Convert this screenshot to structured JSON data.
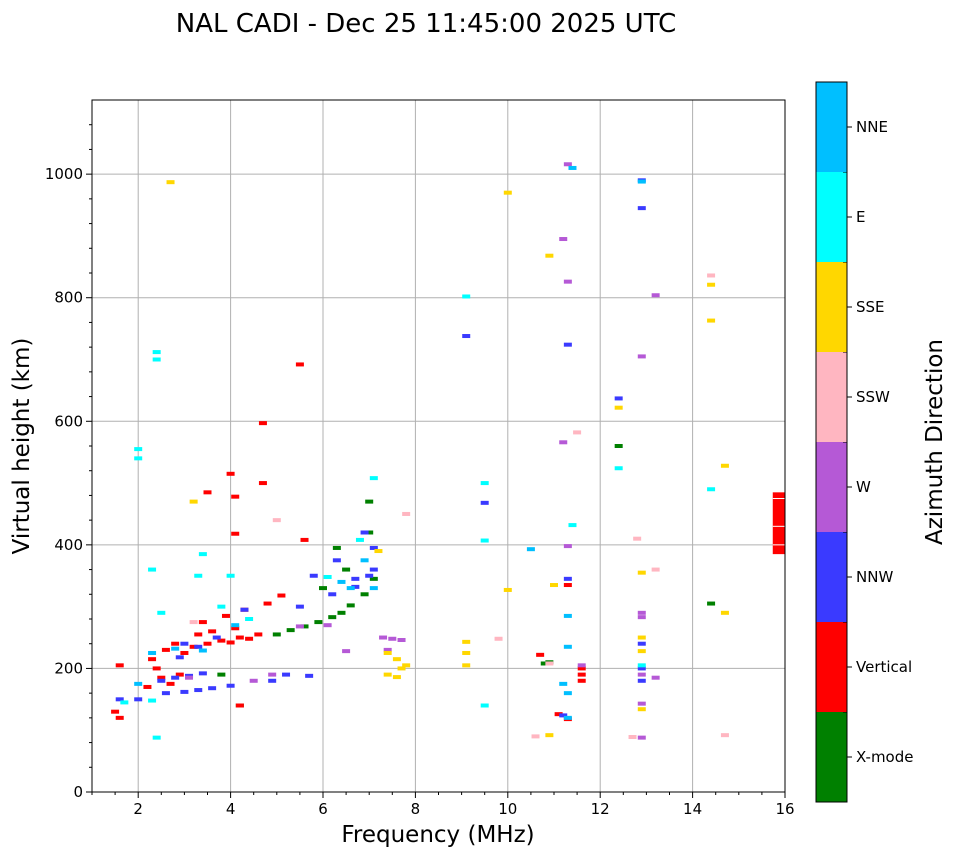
{
  "chart_data": {
    "type": "scatter",
    "title": "NAL CADI - Dec 25 11:45:00 2025 UTC",
    "xlabel": "Frequency (MHz)",
    "ylabel": "Virtual height (km)",
    "xlim": [
      1,
      16
    ],
    "ylim": [
      0,
      1120
    ],
    "xticks": [
      2,
      4,
      6,
      8,
      10,
      12,
      14,
      16
    ],
    "yticks": [
      0,
      200,
      400,
      600,
      800,
      1000
    ],
    "grid": true,
    "colorbar": {
      "label": "Azimuth Direction",
      "categories": [
        "X-mode",
        "Vertical",
        "NNW",
        "W",
        "SSW",
        "SSE",
        "E",
        "NNE"
      ],
      "colors": [
        "#008000",
        "#ff0000",
        "#3a3aff",
        "#b559d6",
        "#ffb6c1",
        "#ffd700",
        "#00ffff",
        "#00bfff"
      ]
    },
    "series": [
      {
        "name": "X-mode",
        "points": [
          [
            4.2,
            140
          ],
          [
            5.0,
            255
          ],
          [
            5.3,
            262
          ],
          [
            5.6,
            268
          ],
          [
            5.9,
            275
          ],
          [
            6.2,
            283
          ],
          [
            6.4,
            290
          ],
          [
            6.6,
            302
          ],
          [
            6.9,
            320
          ],
          [
            7.1,
            345
          ],
          [
            6.0,
            330
          ],
          [
            6.5,
            360
          ],
          [
            7.0,
            420
          ],
          [
            6.3,
            395
          ],
          [
            7.0,
            470
          ],
          [
            3.8,
            190
          ],
          [
            10.8,
            208
          ],
          [
            10.9,
            210
          ],
          [
            12.4,
            560
          ],
          [
            14.4,
            305
          ]
        ]
      },
      {
        "name": "Vertical",
        "points": [
          [
            1.5,
            130
          ],
          [
            1.6,
            120
          ],
          [
            1.6,
            205
          ],
          [
            2.2,
            170
          ],
          [
            2.4,
            200
          ],
          [
            2.5,
            185
          ],
          [
            2.7,
            175
          ],
          [
            2.9,
            190
          ],
          [
            2.3,
            215
          ],
          [
            2.6,
            230
          ],
          [
            2.8,
            240
          ],
          [
            3.0,
            225
          ],
          [
            3.2,
            235
          ],
          [
            3.5,
            240
          ],
          [
            3.8,
            245
          ],
          [
            4.0,
            242
          ],
          [
            4.2,
            250
          ],
          [
            4.4,
            248
          ],
          [
            4.6,
            255
          ],
          [
            3.3,
            255
          ],
          [
            3.6,
            260
          ],
          [
            4.1,
            265
          ],
          [
            3.4,
            275
          ],
          [
            3.9,
            285
          ],
          [
            4.3,
            295
          ],
          [
            4.8,
            305
          ],
          [
            5.1,
            318
          ],
          [
            3.5,
            485
          ],
          [
            4.1,
            478
          ],
          [
            4.7,
            500
          ],
          [
            4.0,
            515
          ],
          [
            4.7,
            597
          ],
          [
            4.1,
            418
          ],
          [
            5.5,
            692
          ],
          [
            5.6,
            408
          ],
          [
            10.7,
            222
          ],
          [
            11.1,
            126
          ],
          [
            11.3,
            118
          ],
          [
            11.3,
            335
          ],
          [
            11.6,
            180
          ],
          [
            11.6,
            190
          ],
          [
            11.6,
            200
          ],
          [
            4.2,
            140
          ]
        ]
      },
      {
        "name": "NNW",
        "points": [
          [
            1.6,
            150
          ],
          [
            2.0,
            150
          ],
          [
            2.6,
            160
          ],
          [
            3.0,
            162
          ],
          [
            3.3,
            165
          ],
          [
            3.6,
            168
          ],
          [
            4.0,
            172
          ],
          [
            2.5,
            180
          ],
          [
            2.8,
            185
          ],
          [
            3.1,
            188
          ],
          [
            3.4,
            192
          ],
          [
            5.2,
            190
          ],
          [
            5.7,
            188
          ],
          [
            3.0,
            240
          ],
          [
            3.3,
            235
          ],
          [
            2.9,
            218
          ],
          [
            3.7,
            250
          ],
          [
            4.3,
            295
          ],
          [
            5.5,
            300
          ],
          [
            6.2,
            320
          ],
          [
            6.7,
            345
          ],
          [
            7.1,
            360
          ],
          [
            6.7,
            332
          ],
          [
            7.0,
            350
          ],
          [
            5.8,
            350
          ],
          [
            6.3,
            375
          ],
          [
            7.1,
            395
          ],
          [
            6.9,
            420
          ],
          [
            9.1,
            738
          ],
          [
            9.5,
            468
          ],
          [
            11.2,
            124
          ],
          [
            11.3,
            724
          ],
          [
            11.3,
            345
          ],
          [
            12.4,
            637
          ],
          [
            12.9,
            990
          ],
          [
            12.9,
            945
          ],
          [
            12.9,
            240
          ],
          [
            12.9,
            200
          ],
          [
            12.9,
            180
          ],
          [
            4.9,
            180
          ]
        ]
      },
      {
        "name": "W",
        "points": [
          [
            4.9,
            190
          ],
          [
            5.5,
            268
          ],
          [
            6.1,
            270
          ],
          [
            6.5,
            228
          ],
          [
            7.3,
            250
          ],
          [
            7.5,
            248
          ],
          [
            7.7,
            246
          ],
          [
            7.4,
            230
          ],
          [
            11.3,
            398
          ],
          [
            11.6,
            205
          ],
          [
            12.9,
            705
          ],
          [
            12.9,
            290
          ],
          [
            12.9,
            283
          ],
          [
            12.9,
            190
          ],
          [
            13.2,
            804
          ],
          [
            13.2,
            185
          ],
          [
            12.9,
            143
          ],
          [
            12.9,
            88
          ],
          [
            11.3,
            826
          ],
          [
            11.2,
            895
          ],
          [
            11.2,
            566
          ],
          [
            11.3,
            1016
          ],
          [
            3.1,
            185
          ],
          [
            4.5,
            180
          ]
        ]
      },
      {
        "name": "SSW",
        "points": [
          [
            5.0,
            440
          ],
          [
            7.8,
            450
          ],
          [
            9.8,
            248
          ],
          [
            10.9,
            208
          ],
          [
            10.6,
            90
          ],
          [
            12.8,
            410
          ],
          [
            13.2,
            360
          ],
          [
            12.7,
            89
          ],
          [
            14.4,
            836
          ],
          [
            14.7,
            92
          ],
          [
            11.5,
            582
          ],
          [
            3.2,
            275
          ]
        ]
      },
      {
        "name": "SSE",
        "points": [
          [
            2.7,
            987
          ],
          [
            3.2,
            470
          ],
          [
            7.4,
            225
          ],
          [
            7.6,
            215
          ],
          [
            7.7,
            200
          ],
          [
            7.8,
            205
          ],
          [
            7.4,
            190
          ],
          [
            7.6,
            186
          ],
          [
            9.1,
            243
          ],
          [
            9.1,
            225
          ],
          [
            9.1,
            205
          ],
          [
            10.0,
            970
          ],
          [
            10.0,
            327
          ],
          [
            10.9,
            868
          ],
          [
            11.0,
            335
          ],
          [
            10.9,
            92
          ],
          [
            12.4,
            622
          ],
          [
            12.9,
            355
          ],
          [
            12.9,
            250
          ],
          [
            12.9,
            228
          ],
          [
            12.9,
            134
          ],
          [
            14.4,
            821
          ],
          [
            14.4,
            763
          ],
          [
            14.7,
            528
          ],
          [
            14.7,
            290
          ],
          [
            7.2,
            390
          ]
        ]
      },
      {
        "name": "E",
        "points": [
          [
            2.0,
            555
          ],
          [
            2.0,
            540
          ],
          [
            2.4,
            712
          ],
          [
            2.4,
            700
          ],
          [
            2.3,
            148
          ],
          [
            2.3,
            360
          ],
          [
            3.4,
            385
          ],
          [
            3.3,
            350
          ],
          [
            4.0,
            350
          ],
          [
            2.5,
            290
          ],
          [
            3.8,
            300
          ],
          [
            4.4,
            280
          ],
          [
            9.1,
            802
          ],
          [
            9.5,
            500
          ],
          [
            9.5,
            407
          ],
          [
            9.5,
            140
          ],
          [
            11.4,
            432
          ],
          [
            12.4,
            524
          ],
          [
            12.9,
            205
          ],
          [
            14.4,
            490
          ],
          [
            1.7,
            145
          ],
          [
            2.4,
            88
          ],
          [
            6.1,
            348
          ],
          [
            6.8,
            408
          ],
          [
            7.1,
            508
          ]
        ]
      },
      {
        "name": "NNE",
        "points": [
          [
            11.4,
            1010
          ],
          [
            11.3,
            285
          ],
          [
            11.3,
            235
          ],
          [
            11.2,
            175
          ],
          [
            11.3,
            160
          ],
          [
            11.3,
            120
          ],
          [
            10.5,
            393
          ],
          [
            6.4,
            340
          ],
          [
            6.6,
            330
          ],
          [
            6.9,
            375
          ],
          [
            2.0,
            175
          ],
          [
            2.3,
            225
          ],
          [
            2.8,
            232
          ],
          [
            3.4,
            229
          ],
          [
            4.1,
            270
          ],
          [
            7.1,
            330
          ],
          [
            12.9,
            988
          ]
        ]
      }
    ],
    "vertical_bar": {
      "freq": 15.8,
      "height_range": [
        385,
        485
      ],
      "series": "Vertical"
    }
  }
}
